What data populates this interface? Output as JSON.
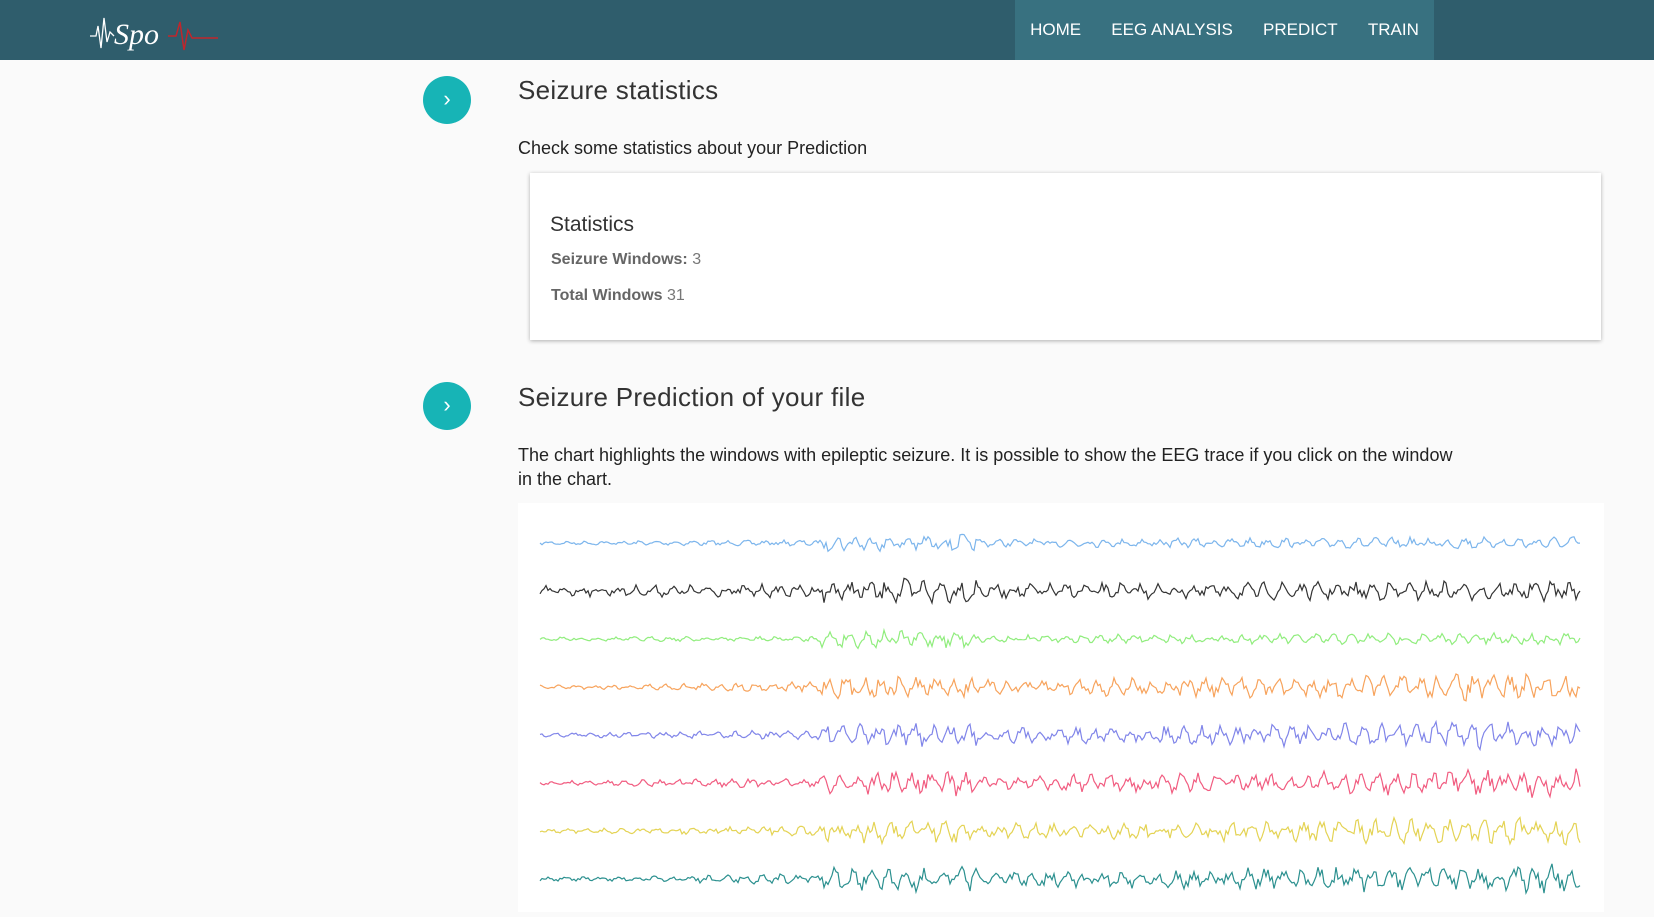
{
  "header": {
    "logo": "Spo",
    "nav": [
      "HOME",
      "EEG ANALYSIS",
      "PREDICT",
      "TRAIN"
    ]
  },
  "sections": [
    {
      "title": "Seizure statistics",
      "description": "Check some statistics about your Prediction",
      "card": {
        "title": "Statistics",
        "rows": [
          {
            "label": "Seizure Windows:",
            "value": "3"
          },
          {
            "label": "Total Windows",
            "value": "31"
          }
        ]
      }
    },
    {
      "title": "Seizure Prediction of your file",
      "description": "The chart highlights the windows with epileptic seizure. It is possible to show the EEG trace if you click on the window in the chart."
    }
  ]
}
